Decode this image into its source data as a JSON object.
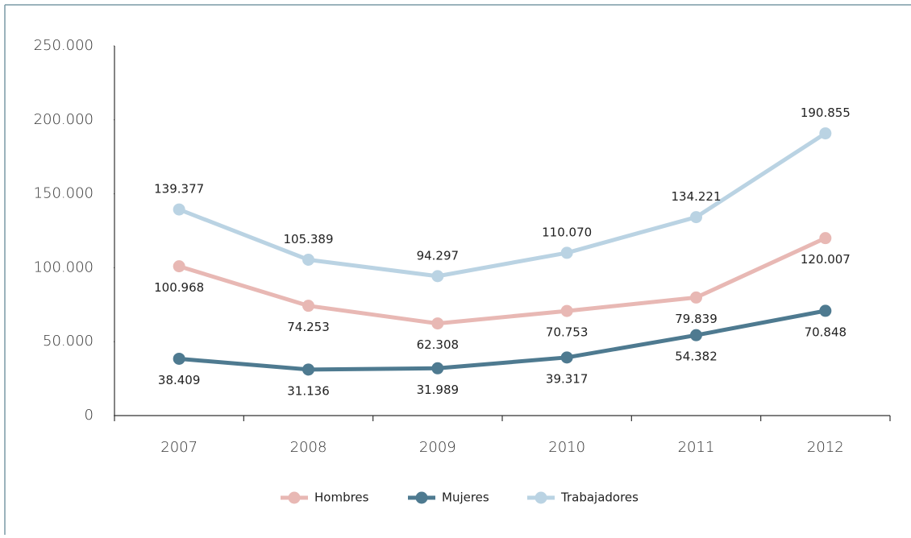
{
  "chart_data": {
    "type": "line",
    "categories": [
      "2007",
      "2008",
      "2009",
      "2010",
      "2011",
      "2012"
    ],
    "series": [
      {
        "name": "Hombres",
        "color": "#e8b8b4",
        "values": [
          100968,
          74253,
          62308,
          70753,
          79839,
          120007
        ],
        "value_labels": [
          "100.968",
          "74.253",
          "62.308",
          "70.753",
          "79.839",
          "120.007"
        ]
      },
      {
        "name": "Mujeres",
        "color": "#4e7a90",
        "values": [
          38409,
          31136,
          31989,
          39317,
          54382,
          70848
        ],
        "value_labels": [
          "38.409",
          "31.136",
          "31.989",
          "39.317",
          "54.382",
          "70.848"
        ]
      },
      {
        "name": "Trabajadores",
        "color": "#bad3e3",
        "values": [
          139377,
          105389,
          94297,
          110070,
          134221,
          190855
        ],
        "value_labels": [
          "139.377",
          "105.389",
          "94.297",
          "110.070",
          "134.221",
          "190.855"
        ]
      }
    ],
    "ylim": [
      0,
      250000
    ],
    "yticks": [
      0,
      {
        "value": 50000,
        "label": "50.000"
      },
      {
        "value": 100000,
        "label": "100.000"
      },
      {
        "value": 150000,
        "label": "150.000"
      },
      {
        "value": 200000,
        "label": "200.000"
      },
      {
        "value": 250000,
        "label": "250.000"
      }
    ],
    "legend": "bottom"
  }
}
